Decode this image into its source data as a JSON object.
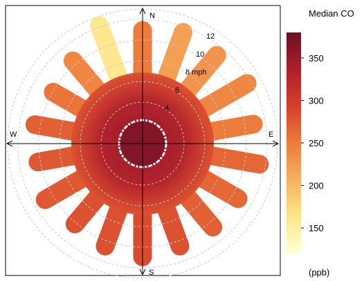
{
  "chart_data": {
    "type": "heatmap",
    "subtype": "polar-plot",
    "title": "",
    "directions": {
      "north": "N",
      "east": "E",
      "south": "S",
      "west": "W"
    },
    "radial_axis": {
      "unit": "mph",
      "ticks": [
        4,
        6,
        8,
        10,
        12
      ],
      "tick_labels": [
        "4",
        "6",
        "8 mph",
        "10",
        "12"
      ],
      "max": 13,
      "grid": true
    },
    "colorbar": {
      "title": "Median CO",
      "unit_label": "(ppb)",
      "range": [
        120,
        380
      ],
      "ticks": [
        150,
        200,
        250,
        300,
        350
      ],
      "tick_labels": [
        "150",
        "200",
        "250",
        "300",
        "350"
      ],
      "color_stops": [
        "#ffffd4",
        "#fde68a",
        "#f7b15f",
        "#ed7b3b",
        "#d4402b",
        "#ae1f2c",
        "#6b0f24"
      ]
    },
    "spokes": [
      {
        "direction_deg": 0,
        "reach_mph": 11.8,
        "median_co_ppb": 250
      },
      {
        "direction_deg": 20,
        "reach_mph": 12.3,
        "median_co_ppb": 220
      },
      {
        "direction_deg": 40,
        "reach_mph": 12.0,
        "median_co_ppb": 230
      },
      {
        "direction_deg": 60,
        "reach_mph": 12.5,
        "median_co_ppb": 240
      },
      {
        "direction_deg": 80,
        "reach_mph": 11.7,
        "median_co_ppb": 250
      },
      {
        "direction_deg": 100,
        "reach_mph": 12.3,
        "median_co_ppb": 265
      },
      {
        "direction_deg": 120,
        "reach_mph": 11.5,
        "median_co_ppb": 265
      },
      {
        "direction_deg": 140,
        "reach_mph": 11.4,
        "median_co_ppb": 270
      },
      {
        "direction_deg": 160,
        "reach_mph": 11.4,
        "median_co_ppb": 280
      },
      {
        "direction_deg": 180,
        "reach_mph": 11.8,
        "median_co_ppb": 285
      },
      {
        "direction_deg": 200,
        "reach_mph": 11.4,
        "median_co_ppb": 280
      },
      {
        "direction_deg": 220,
        "reach_mph": 11.0,
        "median_co_ppb": 280
      },
      {
        "direction_deg": 240,
        "reach_mph": 11.7,
        "median_co_ppb": 275
      },
      {
        "direction_deg": 260,
        "reach_mph": 11.1,
        "median_co_ppb": 275
      },
      {
        "direction_deg": 280,
        "reach_mph": 11.4,
        "median_co_ppb": 270
      },
      {
        "direction_deg": 300,
        "reach_mph": 10.8,
        "median_co_ppb": 255
      },
      {
        "direction_deg": 320,
        "reach_mph": 11.3,
        "median_co_ppb": 240
      },
      {
        "direction_deg": 340,
        "reach_mph": 13.0,
        "median_co_ppb": 160
      }
    ],
    "inner_region": {
      "solid_to_mph": 7.0,
      "median_co_ppb": 340,
      "calm_gap_mph": [
        1.3,
        1.6
      ]
    }
  }
}
